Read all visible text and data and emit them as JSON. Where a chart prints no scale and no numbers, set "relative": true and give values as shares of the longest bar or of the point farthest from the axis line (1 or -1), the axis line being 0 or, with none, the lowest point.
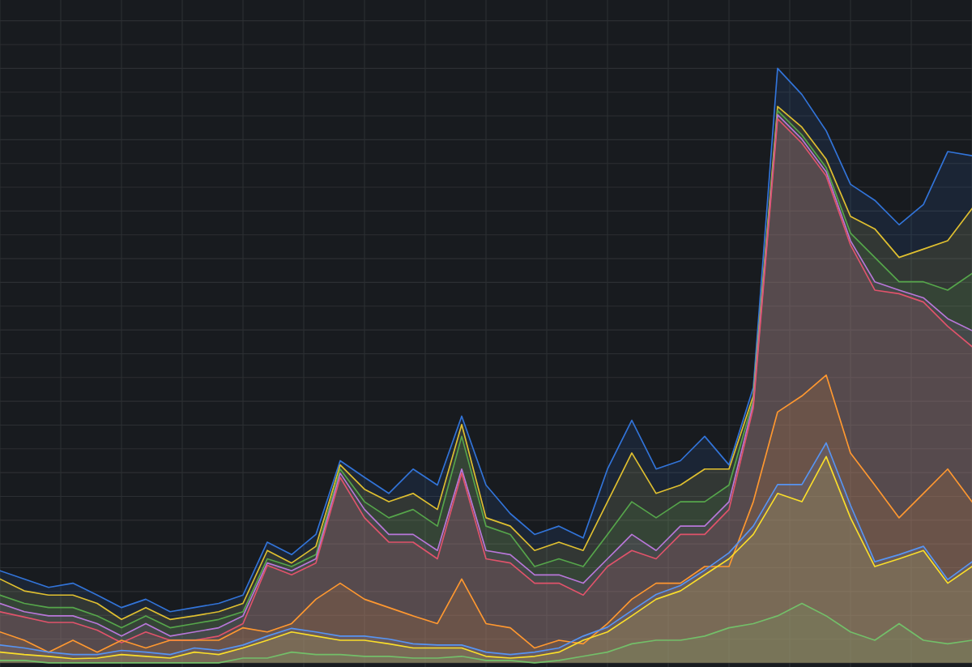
{
  "chart_data": {
    "type": "area",
    "relative": true,
    "grid": true,
    "legend": false,
    "categories": [
      null,
      null,
      null,
      null,
      null,
      null,
      null,
      null,
      null,
      null,
      null,
      null,
      null,
      null,
      null,
      null,
      null,
      null,
      null,
      null,
      null,
      null,
      null,
      null,
      null,
      null,
      null,
      null,
      null,
      null,
      null,
      null,
      null,
      null,
      null,
      null,
      null,
      null,
      null,
      null,
      null
    ],
    "series": [
      {
        "color": "#3274d9",
        "values": [
          0.155,
          0.141,
          0.127,
          0.134,
          0.114,
          0.093,
          0.107,
          0.086,
          0.093,
          0.1,
          0.114,
          0.203,
          0.182,
          0.216,
          0.34,
          0.312,
          0.285,
          0.326,
          0.299,
          0.415,
          0.299,
          0.251,
          0.216,
          0.23,
          0.21,
          0.326,
          0.408,
          0.326,
          0.34,
          0.381,
          0.333,
          0.463,
          1.0,
          0.956,
          0.895,
          0.805,
          0.778,
          0.737,
          0.771,
          0.86,
          0.853
        ]
      },
      {
        "color": "#e0c030",
        "values": [
          0.141,
          0.121,
          0.114,
          0.114,
          0.1,
          0.073,
          0.093,
          0.073,
          0.079,
          0.086,
          0.1,
          0.189,
          0.168,
          0.196,
          0.333,
          0.292,
          0.271,
          0.285,
          0.258,
          0.401,
          0.244,
          0.23,
          0.189,
          0.203,
          0.189,
          0.271,
          0.353,
          0.285,
          0.299,
          0.326,
          0.326,
          0.449,
          0.936,
          0.901,
          0.847,
          0.751,
          0.73,
          0.682,
          0.696,
          0.71,
          0.764
        ]
      },
      {
        "color": "#56a64b",
        "values": [
          0.114,
          0.1,
          0.093,
          0.093,
          0.079,
          0.059,
          0.079,
          0.059,
          0.066,
          0.073,
          0.086,
          0.175,
          0.162,
          0.182,
          0.326,
          0.271,
          0.244,
          0.258,
          0.23,
          0.381,
          0.23,
          0.216,
          0.162,
          0.175,
          0.162,
          0.216,
          0.271,
          0.244,
          0.271,
          0.271,
          0.299,
          0.442,
          0.929,
          0.888,
          0.833,
          0.723,
          0.682,
          0.641,
          0.641,
          0.627,
          0.655
        ]
      },
      {
        "color": "#b877d9",
        "values": [
          0.1,
          0.086,
          0.079,
          0.079,
          0.066,
          0.045,
          0.066,
          0.045,
          0.052,
          0.059,
          0.079,
          0.168,
          0.155,
          0.175,
          0.319,
          0.258,
          0.216,
          0.216,
          0.189,
          0.326,
          0.189,
          0.182,
          0.148,
          0.148,
          0.134,
          0.175,
          0.216,
          0.189,
          0.23,
          0.23,
          0.271,
          0.436,
          0.922,
          0.881,
          0.826,
          0.71,
          0.641,
          0.627,
          0.614,
          0.579,
          0.559
        ]
      },
      {
        "color": "#e0536b",
        "values": [
          0.086,
          0.077,
          0.068,
          0.068,
          0.055,
          0.034,
          0.052,
          0.038,
          0.038,
          0.045,
          0.066,
          0.164,
          0.148,
          0.168,
          0.312,
          0.244,
          0.203,
          0.203,
          0.175,
          0.319,
          0.175,
          0.168,
          0.134,
          0.134,
          0.114,
          0.162,
          0.189,
          0.175,
          0.216,
          0.216,
          0.258,
          0.429,
          0.915,
          0.874,
          0.819,
          0.703,
          0.627,
          0.621,
          0.607,
          0.566,
          0.532
        ]
      },
      {
        "color": "#ff9830",
        "values": [
          0.052,
          0.038,
          0.018,
          0.038,
          0.018,
          0.038,
          0.025,
          0.038,
          0.038,
          0.038,
          0.059,
          0.052,
          0.066,
          0.107,
          0.134,
          0.107,
          0.093,
          0.079,
          0.066,
          0.141,
          0.066,
          0.059,
          0.025,
          0.038,
          0.032,
          0.066,
          0.107,
          0.134,
          0.134,
          0.162,
          0.162,
          0.271,
          0.422,
          0.449,
          0.484,
          0.353,
          0.299,
          0.244,
          0.285,
          0.326,
          0.271
        ]
      },
      {
        "color": "#5794f2",
        "values": [
          0.03,
          0.025,
          0.018,
          0.014,
          0.014,
          0.021,
          0.018,
          0.014,
          0.025,
          0.021,
          0.03,
          0.045,
          0.058,
          0.052,
          0.045,
          0.045,
          0.04,
          0.032,
          0.03,
          0.03,
          0.018,
          0.014,
          0.018,
          0.025,
          0.045,
          0.06,
          0.088,
          0.115,
          0.13,
          0.156,
          0.185,
          0.23,
          0.3,
          0.3,
          0.37,
          0.265,
          0.17,
          0.182,
          0.196,
          0.14,
          0.17
        ]
      },
      {
        "color": "#fade2a",
        "values": [
          0.018,
          0.014,
          0.011,
          0.007,
          0.008,
          0.014,
          0.011,
          0.008,
          0.018,
          0.014,
          0.025,
          0.038,
          0.052,
          0.045,
          0.038,
          0.038,
          0.032,
          0.025,
          0.025,
          0.025,
          0.011,
          0.008,
          0.011,
          0.018,
          0.038,
          0.052,
          0.079,
          0.107,
          0.121,
          0.148,
          0.175,
          0.216,
          0.285,
          0.271,
          0.347,
          0.244,
          0.162,
          0.175,
          0.189,
          0.134,
          0.162
        ]
      },
      {
        "color": "#73bf69",
        "values": [
          0.004,
          0.004,
          0,
          0,
          0,
          0,
          0,
          0,
          0,
          0,
          0.008,
          0.008,
          0.018,
          0.014,
          0.014,
          0.011,
          0.011,
          0.008,
          0.008,
          0.011,
          0.004,
          0.004,
          0,
          0.004,
          0.011,
          0.018,
          0.032,
          0.038,
          0.038,
          0.045,
          0.059,
          0.066,
          0.079,
          0.1,
          0.079,
          0.052,
          0.038,
          0.066,
          0.038,
          0.032,
          0.038
        ]
      }
    ]
  }
}
